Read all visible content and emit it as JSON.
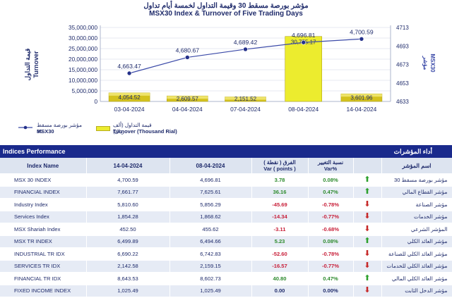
{
  "header": {
    "title_ar": "مؤشر بورصة مسقط 30 وقيمة التداول لخمسة أيام تداول",
    "title_en": "MSX30 Index & Turnover of Five Trading Days"
  },
  "chart_data": {
    "type": "bar+line",
    "categories": [
      "03-04-2024",
      "04-04-2024",
      "07-04-2024",
      "08-04-2024",
      "14-04-2024"
    ],
    "series": [
      {
        "name": "Turnover (Thousand Rial)",
        "name_ar": "قيمة التداول (ألف ريال)",
        "type": "bar",
        "values": [
          4054.52,
          2609.57,
          2151.52,
          30755.17,
          3601.96
        ],
        "labels": [
          "4,054.52",
          "2,609.57",
          "2,151.52",
          "30,755.17",
          "3,601.96"
        ]
      },
      {
        "name": "MSX30",
        "name_ar": "مؤشر بورصة مسقط 30",
        "type": "line",
        "values": [
          4663.47,
          4680.67,
          4689.42,
          4696.81,
          4700.59
        ],
        "labels": [
          "4,663.47",
          "4,680.67",
          "4,689.42",
          "4,696.81",
          "4,700.59"
        ]
      }
    ],
    "left_axis": {
      "label_ar": "قيمة التداول",
      "label_en": "Turnover",
      "ylim": [
        0,
        35000000
      ],
      "ticks": [
        "0",
        "5,000,000",
        "10,000,000",
        "15,000,000",
        "20,000,000",
        "25,000,000",
        "30,000,000",
        "35,000,000"
      ]
    },
    "right_axis": {
      "label": "MSX30",
      "label_ar": "مؤشر",
      "ylim": [
        4633,
        4713
      ],
      "ticks": [
        "4633",
        "4653",
        "4673",
        "4693",
        "4713"
      ]
    },
    "colors": {
      "bar_normal": "#d4c21e",
      "bar_highlight": "#ecec2e",
      "line": "#3b4aa8",
      "marker": "#24308a"
    }
  },
  "table": {
    "title_left": "Indices Performance",
    "title_right": "أداء المؤشرات",
    "columns": {
      "name": "Index Name",
      "d1": "14-04-2024",
      "d2": "08-04-2024",
      "var_ar": "الفرق ( نقطة )",
      "var_en": "Var ( points )",
      "pct_ar": "نسبة التغيير",
      "pct_en": "Var%",
      "name_ar": "اسم المؤشر"
    },
    "rows": [
      {
        "name": "MSX 30 INDEX",
        "d1": "4,700.59",
        "d2": "4,696.81",
        "var": "3.78",
        "pct": "0.08%",
        "dir": "up",
        "name_ar": "مؤشر بورصة مسقط 30"
      },
      {
        "name": "FINANCIAL INDEX",
        "d1": "7,661.77",
        "d2": "7,625.61",
        "var": "36.16",
        "pct": "0.47%",
        "dir": "up",
        "name_ar": "مؤشر القطاع المالي"
      },
      {
        "name": "Industry Index",
        "d1": "5,810.60",
        "d2": "5,856.29",
        "var": "-45.69",
        "pct": "-0.78%",
        "dir": "down",
        "name_ar": "مؤشر الصناعة"
      },
      {
        "name": "Services Index",
        "d1": "1,854.28",
        "d2": "1,868.62",
        "var": "-14.34",
        "pct": "-0.77%",
        "dir": "down",
        "name_ar": "مؤشر الخدمات"
      },
      {
        "name": "MSX Shariah Index",
        "d1": "452.50",
        "d2": "455.62",
        "var": "-3.11",
        "pct": "-0.68%",
        "dir": "down",
        "name_ar": "المؤشر الشرعي"
      },
      {
        "name": "MSX TR INDEX",
        "d1": "6,499.89",
        "d2": "6,494.66",
        "var": "5.23",
        "pct": "0.08%",
        "dir": "up",
        "name_ar": "مؤشر العائد الكلي"
      },
      {
        "name": "INDUSTRIAL TR IDX",
        "d1": "6,690.22",
        "d2": "6,742.83",
        "var": "-52.60",
        "pct": "-0.78%",
        "dir": "down",
        "name_ar": "مؤشر العائد الكلي للصناعة"
      },
      {
        "name": "SERVICES TR IDX",
        "d1": "2,142.58",
        "d2": "2,159.15",
        "var": "-16.57",
        "pct": "-0.77%",
        "dir": "down",
        "name_ar": "مؤشر العائد الكلي للخدمات"
      },
      {
        "name": "FINANCIAL TR IDX",
        "d1": "8,643.53",
        "d2": "8,602.73",
        "var": "40.80",
        "pct": "0.47%",
        "dir": "up",
        "name_ar": "مؤشر العائد الكلي المالي"
      },
      {
        "name": "FIXED INCOME INDEX",
        "d1": "1,025.49",
        "d2": "1,025.49",
        "var": "0.00",
        "pct": "0.00%",
        "dir": "flat",
        "name_ar": "مؤشر الدخل الثابت"
      }
    ]
  }
}
